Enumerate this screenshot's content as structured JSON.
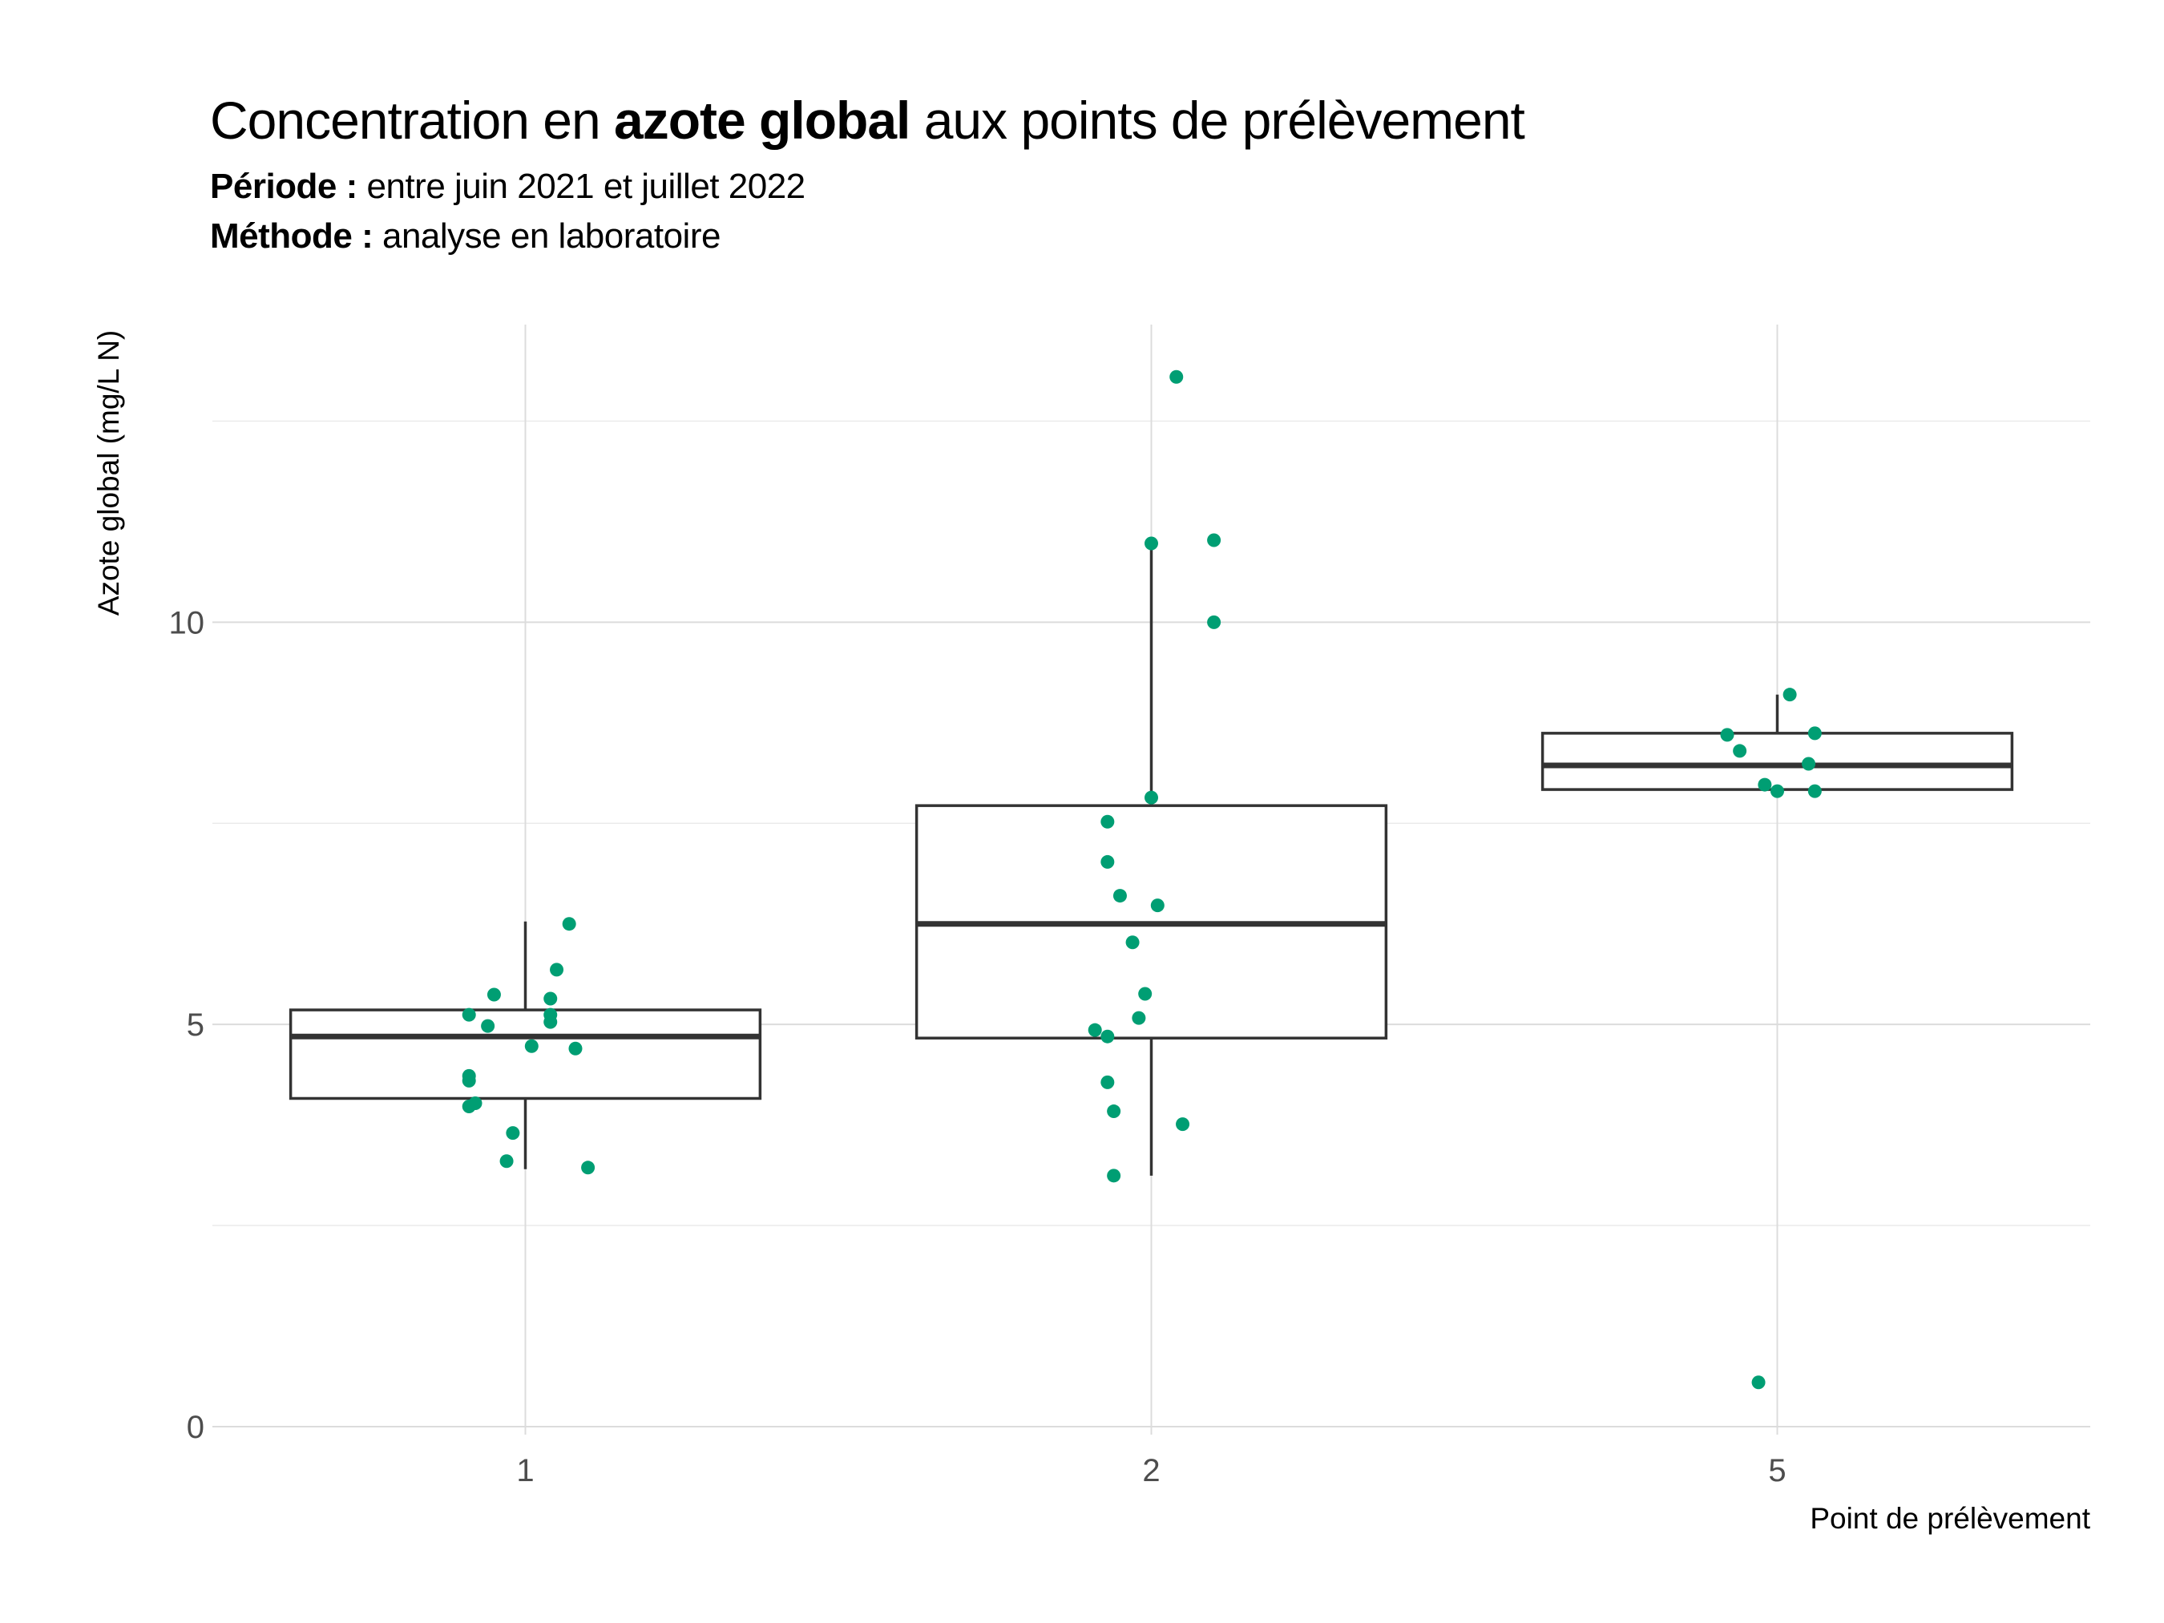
{
  "title": {
    "prefix": "Concentration en ",
    "bold": "azote global",
    "suffix": " aux points de prélèvement"
  },
  "subtitle": {
    "line1_label": "Période :",
    "line1_text": " entre juin 2021 et juillet 2022",
    "line2_label": "Méthode :",
    "line2_text": " analyse en laboratoire"
  },
  "chart_data": {
    "type": "boxplot",
    "xlabel": "Point de prélèvement",
    "ylabel": "Azote global (mg/L N)",
    "ylim": [
      -0.1,
      13.7
    ],
    "yticks": [
      0,
      5,
      10
    ],
    "grid": true,
    "point_color": "#009E73",
    "box_color": "#333333",
    "categories": [
      "1",
      "2",
      "5"
    ],
    "boxes": [
      {
        "category": "1",
        "q1": 4.08,
        "median": 4.85,
        "q3": 5.18,
        "whisker_low": 3.2,
        "whisker_high": 6.28
      },
      {
        "category": "2",
        "q1": 4.83,
        "median": 6.25,
        "q3": 7.72,
        "whisker_low": 3.12,
        "whisker_high": 10.95
      },
      {
        "category": "5",
        "q1": 7.92,
        "median": 8.22,
        "q3": 8.62,
        "whisker_low": 7.92,
        "whisker_high": 9.1
      }
    ],
    "points": [
      {
        "category": "1",
        "offset": 0.07,
        "y": 6.25
      },
      {
        "category": "1",
        "offset": 0.05,
        "y": 5.68
      },
      {
        "category": "1",
        "offset": -0.05,
        "y": 5.37
      },
      {
        "category": "1",
        "offset": 0.04,
        "y": 5.32
      },
      {
        "category": "1",
        "offset": -0.09,
        "y": 5.12
      },
      {
        "category": "1",
        "offset": 0.04,
        "y": 5.12
      },
      {
        "category": "1",
        "offset": 0.04,
        "y": 5.03
      },
      {
        "category": "1",
        "offset": -0.06,
        "y": 4.98
      },
      {
        "category": "1",
        "offset": 0.01,
        "y": 4.73
      },
      {
        "category": "1",
        "offset": 0.08,
        "y": 4.7
      },
      {
        "category": "1",
        "offset": -0.09,
        "y": 4.36
      },
      {
        "category": "1",
        "offset": -0.09,
        "y": 4.3
      },
      {
        "category": "1",
        "offset": -0.08,
        "y": 4.02
      },
      {
        "category": "1",
        "offset": -0.09,
        "y": 3.98
      },
      {
        "category": "1",
        "offset": -0.02,
        "y": 3.65
      },
      {
        "category": "1",
        "offset": -0.03,
        "y": 3.3
      },
      {
        "category": "1",
        "offset": 0.1,
        "y": 3.22
      },
      {
        "category": "2",
        "offset": 0.04,
        "y": 13.05
      },
      {
        "category": "2",
        "offset": 0.0,
        "y": 10.98
      },
      {
        "category": "2",
        "offset": 0.1,
        "y": 11.02
      },
      {
        "category": "2",
        "offset": 0.1,
        "y": 10.0
      },
      {
        "category": "2",
        "offset": 0.0,
        "y": 7.82
      },
      {
        "category": "2",
        "offset": -0.07,
        "y": 7.52
      },
      {
        "category": "2",
        "offset": -0.07,
        "y": 7.02
      },
      {
        "category": "2",
        "offset": -0.05,
        "y": 6.6
      },
      {
        "category": "2",
        "offset": 0.01,
        "y": 6.48
      },
      {
        "category": "2",
        "offset": -0.03,
        "y": 6.02
      },
      {
        "category": "2",
        "offset": -0.01,
        "y": 5.38
      },
      {
        "category": "2",
        "offset": -0.02,
        "y": 5.08
      },
      {
        "category": "2",
        "offset": -0.09,
        "y": 4.93
      },
      {
        "category": "2",
        "offset": -0.07,
        "y": 4.85
      },
      {
        "category": "2",
        "offset": -0.07,
        "y": 4.28
      },
      {
        "category": "2",
        "offset": -0.06,
        "y": 3.92
      },
      {
        "category": "2",
        "offset": 0.05,
        "y": 3.76
      },
      {
        "category": "2",
        "offset": -0.06,
        "y": 3.12
      },
      {
        "category": "5",
        "offset": 0.02,
        "y": 9.1
      },
      {
        "category": "5",
        "offset": -0.08,
        "y": 8.6
      },
      {
        "category": "5",
        "offset": 0.06,
        "y": 8.62
      },
      {
        "category": "5",
        "offset": -0.06,
        "y": 8.4
      },
      {
        "category": "5",
        "offset": 0.05,
        "y": 8.24
      },
      {
        "category": "5",
        "offset": -0.02,
        "y": 7.98
      },
      {
        "category": "5",
        "offset": 0.0,
        "y": 7.9
      },
      {
        "category": "5",
        "offset": 0.06,
        "y": 7.9
      },
      {
        "category": "5",
        "offset": -0.03,
        "y": 0.55
      }
    ]
  }
}
